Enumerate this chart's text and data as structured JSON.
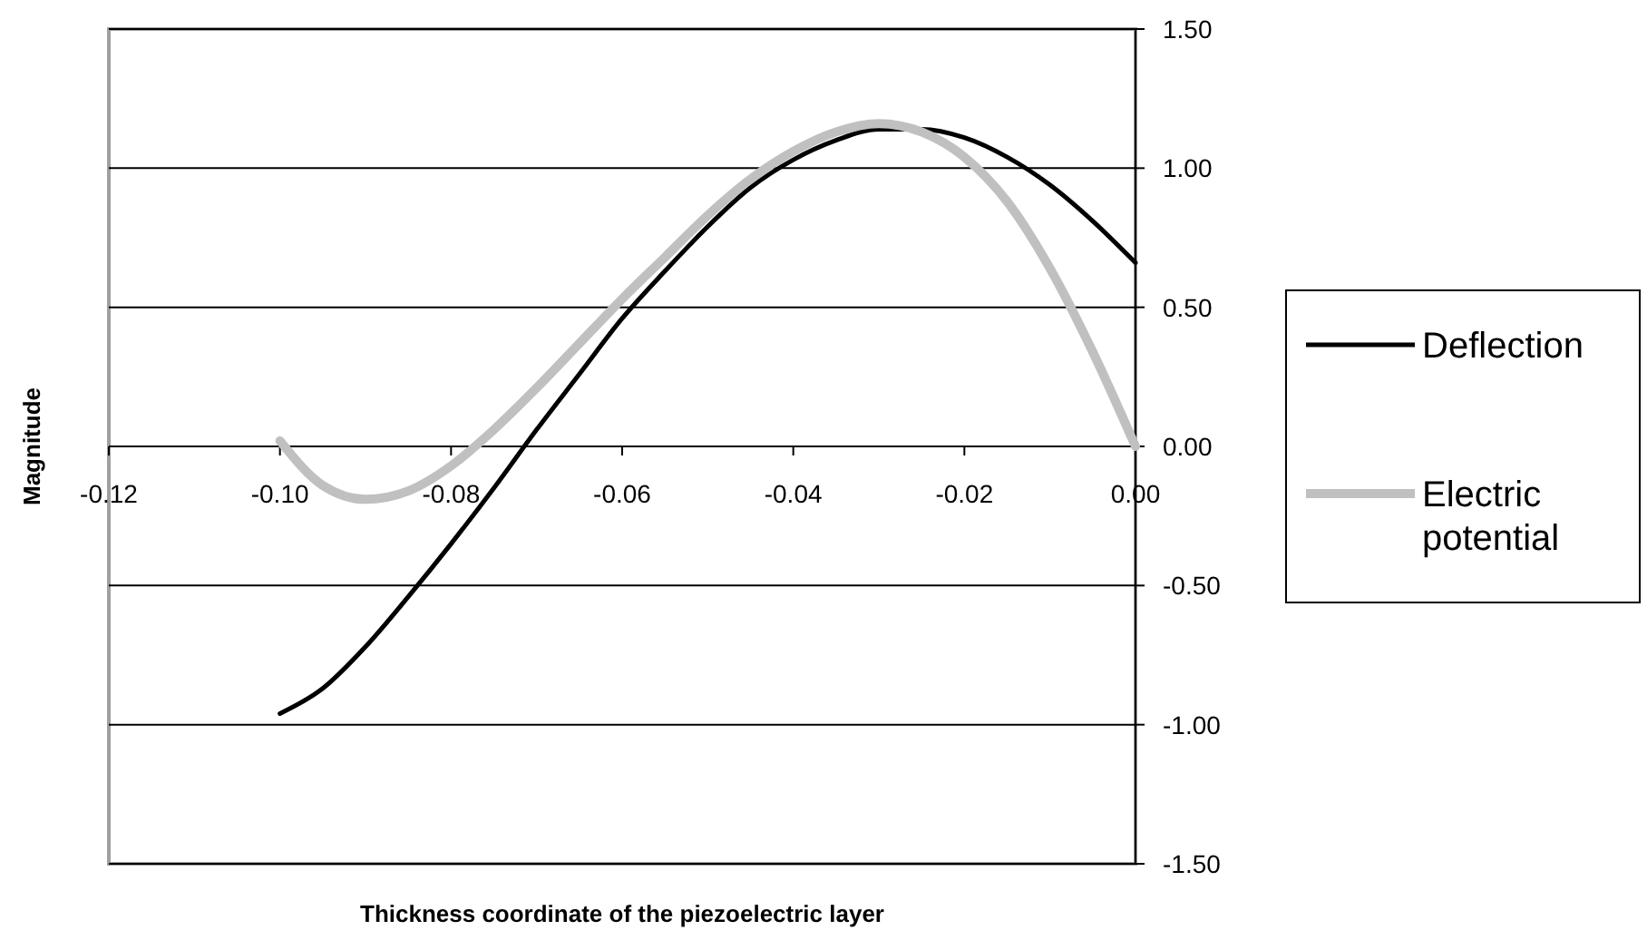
{
  "chart_data": {
    "type": "line",
    "xlabel": "Thickness coordinate of the piezoelectric layer",
    "ylabel": "Magnitude",
    "x": [
      -0.1,
      -0.095,
      -0.09,
      -0.085,
      -0.08,
      -0.075,
      -0.07,
      -0.065,
      -0.06,
      -0.055,
      -0.05,
      -0.045,
      -0.04,
      -0.035,
      -0.03,
      -0.025,
      -0.02,
      -0.015,
      -0.01,
      -0.005,
      0
    ],
    "series": [
      {
        "name": "Deflection",
        "color": "#000000",
        "values": [
          -0.96,
          -0.87,
          -0.72,
          -0.54,
          -0.35,
          -0.15,
          0.06,
          0.26,
          0.46,
          0.63,
          0.79,
          0.93,
          1.03,
          1.1,
          1.14,
          1.14,
          1.11,
          1.04,
          0.94,
          0.81,
          0.66
        ]
      },
      {
        "name": "Electric potential",
        "color": "#c0c0c0",
        "values": [
          0.02,
          -0.14,
          -0.19,
          -0.16,
          -0.07,
          0.06,
          0.21,
          0.37,
          0.53,
          0.68,
          0.83,
          0.96,
          1.06,
          1.13,
          1.16,
          1.13,
          1.04,
          0.88,
          0.64,
          0.34,
          0.0
        ]
      }
    ],
    "xlim": [
      -0.12,
      0
    ],
    "xticks": [
      {
        "value": -0.12,
        "label": "-0.12"
      },
      {
        "value": -0.1,
        "label": "-0.10"
      },
      {
        "value": -0.08,
        "label": "-0.08"
      },
      {
        "value": -0.06,
        "label": "-0.06"
      },
      {
        "value": -0.04,
        "label": "-0.04"
      },
      {
        "value": -0.02,
        "label": "-0.02"
      },
      {
        "value": 0,
        "label": "0.00"
      }
    ],
    "ylim": [
      -1.5,
      1.5
    ],
    "yticks": [
      {
        "value": -1.5,
        "label": "-1.50"
      },
      {
        "value": -1,
        "label": "-1.00"
      },
      {
        "value": -0.5,
        "label": "-0.50"
      },
      {
        "value": 0,
        "label": "0.00"
      },
      {
        "value": 0.5,
        "label": "0.50"
      },
      {
        "value": 1,
        "label": "1.00"
      },
      {
        "value": 1.5,
        "label": "1.50"
      }
    ],
    "grid": "y",
    "legend": "right",
    "marker": "none",
    "line_style": "solid"
  }
}
